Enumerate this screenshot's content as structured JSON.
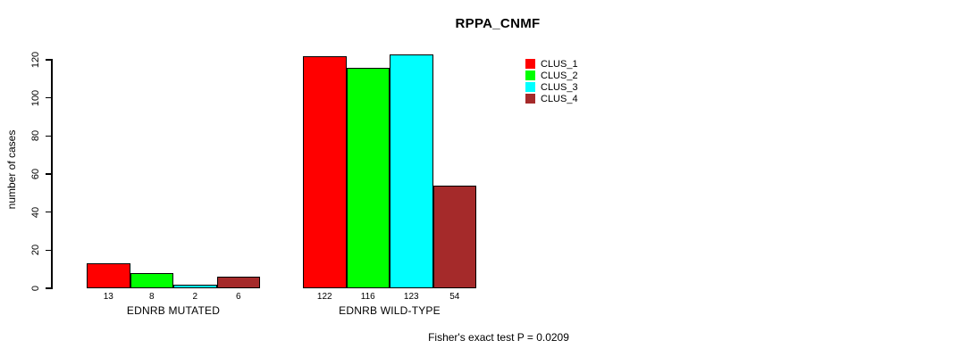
{
  "chart_data": {
    "type": "bar",
    "title": "RPPA_CNMF",
    "xlabel": "",
    "ylabel": "number of cases",
    "ylim": [
      0,
      120
    ],
    "yticks": [
      0,
      20,
      40,
      60,
      80,
      100,
      120
    ],
    "categories": [
      "EDNRB MUTATED",
      "EDNRB WILD-TYPE"
    ],
    "series": [
      {
        "name": "CLUS_1",
        "color": "#ff0000",
        "values": [
          13,
          122
        ]
      },
      {
        "name": "CLUS_2",
        "color": "#00ff00",
        "values": [
          8,
          116
        ]
      },
      {
        "name": "CLUS_3",
        "color": "#00ffff",
        "values": [
          2,
          123
        ]
      },
      {
        "name": "CLUS_4",
        "color": "#a52a2a",
        "values": [
          6,
          54
        ]
      }
    ],
    "bar_labels_shown": true,
    "grid": false,
    "legend_position": "top-right",
    "annotation": "Fisher's exact test P = 0.0209"
  },
  "colors": {
    "background": "#ffffff",
    "axis": "#000000",
    "text": "#000000"
  }
}
